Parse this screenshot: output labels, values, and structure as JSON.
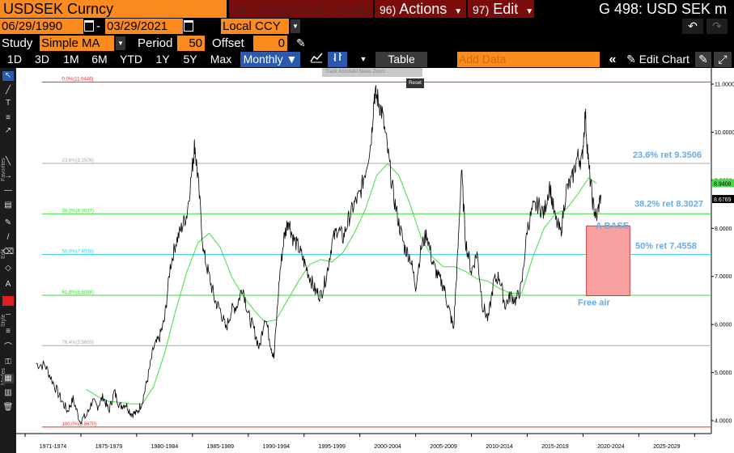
{
  "header": {
    "title": "USDSEK Curncy",
    "suggested": {
      "num": "94)",
      "label": "Suggested Charts"
    },
    "actions": {
      "num": "96)",
      "label": "Actions"
    },
    "edit": {
      "num": "97)",
      "label": "Edit"
    },
    "security": "G 498: USD SEK m"
  },
  "controls": {
    "start_date": "06/29/1990",
    "separator": "-",
    "end_date": "03/29/2021",
    "currency": "Local CCY",
    "study_label": "Study",
    "study_value": "Simple MA",
    "period_label": "Period",
    "period_value": "50",
    "offset_label": "Offset",
    "offset_value": "0"
  },
  "toolbar": {
    "ranges": [
      "1D",
      "3D",
      "1M",
      "6M",
      "YTD",
      "1Y",
      "5Y",
      "Max"
    ],
    "frequency": "Monthly",
    "table": "Table",
    "add_data_placeholder": "Add Data",
    "edit_chart": "Edit Chart"
  },
  "mini_toolbar": {
    "items": "Track  Annotate  News  Zoom",
    "reset": "Reset"
  },
  "sidebar_labels": [
    "Favorites",
    "Edit",
    "Style",
    "Modes"
  ],
  "colors": {
    "bloomberg_orange": "#fb8b1e",
    "menu_red": "#7a0c0c",
    "price_line": "#000000",
    "ma_line": "#44dd44",
    "fib_red": "#e03030",
    "fib_green": "#33dd33",
    "fib_cyan": "#33ccee",
    "fib_gray": "#aaaaaa",
    "annotation_blue": "#6aabe0",
    "box_fill": "#f7a0a0",
    "box_stroke": "#d04040"
  },
  "chart_data": {
    "type": "line",
    "x_tick_labels": [
      "1971-1974",
      "1975-1979",
      "1980-1984",
      "1985-1989",
      "1990-1994",
      "1995-1999",
      "2000-2004",
      "2005-2009",
      "2010-2014",
      "2015-2019",
      "2020-2024",
      "2025-2029"
    ],
    "y_tick_labels": [
      "4.0000",
      "5.0000",
      "6.0000",
      "7.0000",
      "8.0000",
      "9.0000",
      "10.0000",
      "11.0000"
    ],
    "ylim": [
      3.8,
      11.4
    ],
    "xlim": [
      1969.2,
      2031.5
    ],
    "last_price_label": "8.6769",
    "ma_label": "8.9408",
    "fib_levels": [
      {
        "label": "0.0%(11.0446)",
        "value": 11.0446,
        "color": "#e03030"
      },
      {
        "label": "23.6%(9.3506)",
        "value": 9.3506,
        "color": "#aaaaaa"
      },
      {
        "label": "38.2%(8.3027)",
        "value": 8.3027,
        "color": "#33dd33"
      },
      {
        "label": "50.0%(7.4558)",
        "value": 7.4558,
        "color": "#33ccee"
      },
      {
        "label": "61.8%(6.6088)",
        "value": 6.6088,
        "color": "#33dd33"
      },
      {
        "label": "76.4%(5.5609)",
        "value": 5.5609,
        "color": "#aaaaaa"
      },
      {
        "label": "100.0%(3.8670)",
        "value": 3.867,
        "color": "#e03030"
      }
    ],
    "annotations": [
      {
        "text": "23.6% ret 9.3506",
        "value": 9.3506
      },
      {
        "text": "38.2% ret 8.3027",
        "value": 8.3027
      },
      {
        "text": "50% ret 7.4558",
        "value": 7.4558
      },
      {
        "text": "A BASE",
        "value": 8.0
      },
      {
        "text": "Free air",
        "value": 6.4
      }
    ],
    "target_box": {
      "x": [
        2020.3,
        2024.2
      ],
      "y": [
        6.6,
        8.05
      ]
    },
    "price_series": [
      [
        1971.0,
        5.18
      ],
      [
        1971.8,
        5.15
      ],
      [
        1972.5,
        4.8
      ],
      [
        1973.2,
        4.45
      ],
      [
        1973.8,
        4.2
      ],
      [
        1974.3,
        4.45
      ],
      [
        1974.9,
        4.0
      ],
      [
        1975.5,
        4.1
      ],
      [
        1976.0,
        4.4
      ],
      [
        1976.5,
        4.3
      ],
      [
        1977.0,
        4.5
      ],
      [
        1977.5,
        4.2
      ],
      [
        1978.0,
        4.6
      ],
      [
        1978.5,
        4.3
      ],
      [
        1979.0,
        4.35
      ],
      [
        1979.5,
        4.15
      ],
      [
        1980.0,
        4.15
      ],
      [
        1980.5,
        4.4
      ],
      [
        1981.0,
        4.9
      ],
      [
        1981.5,
        5.5
      ],
      [
        1982.0,
        5.7
      ],
      [
        1982.5,
        6.1
      ],
      [
        1983.0,
        7.2
      ],
      [
        1983.5,
        7.7
      ],
      [
        1984.0,
        8.0
      ],
      [
        1984.5,
        8.3
      ],
      [
        1985.0,
        9.3
      ],
      [
        1985.2,
        9.75
      ],
      [
        1985.5,
        9.0
      ],
      [
        1986.0,
        7.5
      ],
      [
        1986.5,
        7.0
      ],
      [
        1987.0,
        6.5
      ],
      [
        1987.5,
        6.3
      ],
      [
        1988.0,
        5.9
      ],
      [
        1988.5,
        6.3
      ],
      [
        1989.0,
        6.4
      ],
      [
        1989.5,
        6.8
      ],
      [
        1990.0,
        6.2
      ],
      [
        1990.5,
        5.9
      ],
      [
        1991.0,
        5.5
      ],
      [
        1991.5,
        6.2
      ],
      [
        1992.0,
        5.6
      ],
      [
        1992.3,
        5.3
      ],
      [
        1992.8,
        7.0
      ],
      [
        1993.2,
        7.8
      ],
      [
        1993.6,
        8.2
      ],
      [
        1994.0,
        7.8
      ],
      [
        1994.5,
        7.6
      ],
      [
        1995.0,
        7.3
      ],
      [
        1995.5,
        7.0
      ],
      [
        1996.0,
        6.7
      ],
      [
        1996.5,
        6.6
      ],
      [
        1997.0,
        7.0
      ],
      [
        1997.5,
        7.7
      ],
      [
        1998.0,
        8.0
      ],
      [
        1998.5,
        7.8
      ],
      [
        1999.0,
        8.2
      ],
      [
        1999.5,
        8.5
      ],
      [
        2000.0,
        8.7
      ],
      [
        2000.5,
        9.2
      ],
      [
        2001.0,
        9.8
      ],
      [
        2001.3,
        10.8
      ],
      [
        2001.6,
        10.7
      ],
      [
        2002.0,
        10.4
      ],
      [
        2002.5,
        9.6
      ],
      [
        2003.0,
        8.7
      ],
      [
        2003.5,
        8.1
      ],
      [
        2004.0,
        7.6
      ],
      [
        2004.5,
        7.4
      ],
      [
        2005.0,
        6.8
      ],
      [
        2005.5,
        7.6
      ],
      [
        2006.0,
        7.9
      ],
      [
        2006.5,
        7.3
      ],
      [
        2007.0,
        7.0
      ],
      [
        2007.5,
        6.8
      ],
      [
        2008.0,
        6.3
      ],
      [
        2008.4,
        5.9
      ],
      [
        2008.8,
        7.6
      ],
      [
        2009.1,
        9.2
      ],
      [
        2009.5,
        7.7
      ],
      [
        2010.0,
        7.1
      ],
      [
        2010.5,
        7.5
      ],
      [
        2011.0,
        6.4
      ],
      [
        2011.5,
        6.1
      ],
      [
        2012.0,
        6.9
      ],
      [
        2012.5,
        7.0
      ],
      [
        2013.0,
        6.4
      ],
      [
        2013.5,
        6.6
      ],
      [
        2014.0,
        6.5
      ],
      [
        2014.5,
        6.8
      ],
      [
        2015.0,
        8.0
      ],
      [
        2015.5,
        8.4
      ],
      [
        2016.0,
        8.5
      ],
      [
        2016.5,
        8.3
      ],
      [
        2017.0,
        8.9
      ],
      [
        2017.5,
        8.2
      ],
      [
        2018.0,
        7.9
      ],
      [
        2018.5,
        8.8
      ],
      [
        2019.0,
        9.0
      ],
      [
        2019.5,
        9.5
      ],
      [
        2019.9,
        9.4
      ],
      [
        2020.2,
        10.4
      ],
      [
        2020.5,
        9.3
      ],
      [
        2020.9,
        8.5
      ],
      [
        2021.2,
        8.2
      ],
      [
        2021.6,
        8.7
      ]
    ],
    "ma_series": [
      [
        1975.5,
        4.65
      ],
      [
        1976.5,
        4.5
      ],
      [
        1977.5,
        4.4
      ],
      [
        1978.5,
        4.38
      ],
      [
        1979.5,
        4.35
      ],
      [
        1980.5,
        4.35
      ],
      [
        1981.5,
        4.7
      ],
      [
        1982.5,
        5.4
      ],
      [
        1983.5,
        6.3
      ],
      [
        1984.5,
        7.1
      ],
      [
        1985.5,
        7.7
      ],
      [
        1986.5,
        7.9
      ],
      [
        1987.5,
        7.6
      ],
      [
        1988.5,
        7.0
      ],
      [
        1989.5,
        6.6
      ],
      [
        1990.5,
        6.3
      ],
      [
        1991.5,
        6.05
      ],
      [
        1992.5,
        6.1
      ],
      [
        1993.5,
        6.5
      ],
      [
        1994.5,
        6.9
      ],
      [
        1995.5,
        7.25
      ],
      [
        1996.5,
        7.35
      ],
      [
        1997.5,
        7.3
      ],
      [
        1998.5,
        7.5
      ],
      [
        1999.5,
        7.9
      ],
      [
        2000.5,
        8.4
      ],
      [
        2001.5,
        9.1
      ],
      [
        2002.5,
        9.35
      ],
      [
        2003.5,
        9.1
      ],
      [
        2004.5,
        8.5
      ],
      [
        2005.5,
        7.8
      ],
      [
        2006.5,
        7.4
      ],
      [
        2007.5,
        7.2
      ],
      [
        2008.5,
        7.2
      ],
      [
        2009.5,
        7.1
      ],
      [
        2010.5,
        6.95
      ],
      [
        2011.5,
        6.9
      ],
      [
        2012.5,
        6.75
      ],
      [
        2013.5,
        6.65
      ],
      [
        2014.5,
        6.65
      ],
      [
        2015.5,
        7.4
      ],
      [
        2016.5,
        8.0
      ],
      [
        2017.5,
        8.3
      ],
      [
        2018.5,
        8.4
      ],
      [
        2019.5,
        8.7
      ],
      [
        2020.5,
        9.05
      ],
      [
        2021.2,
        8.94
      ]
    ]
  }
}
